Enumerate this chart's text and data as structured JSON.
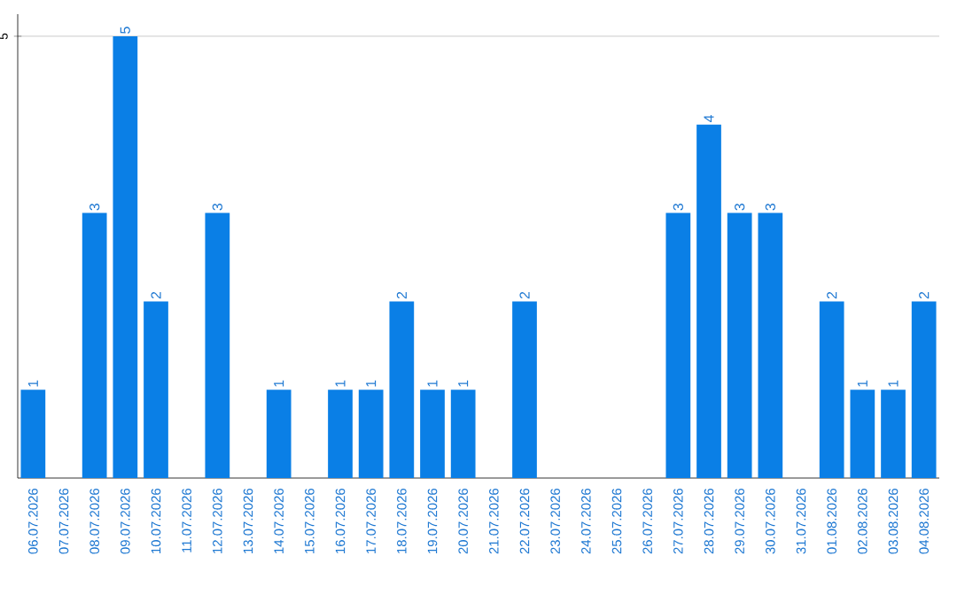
{
  "chart_data": {
    "type": "bar",
    "categories": [
      "06.07.2026",
      "07.07.2026",
      "08.07.2026",
      "09.07.2026",
      "10.07.2026",
      "11.07.2026",
      "12.07.2026",
      "13.07.2026",
      "14.07.2026",
      "15.07.2026",
      "16.07.2026",
      "17.07.2026",
      "18.07.2026",
      "19.07.2026",
      "20.07.2026",
      "21.07.2026",
      "22.07.2026",
      "23.07.2026",
      "24.07.2026",
      "25.07.2026",
      "26.07.2026",
      "27.07.2026",
      "28.07.2026",
      "29.07.2026",
      "30.07.2026",
      "31.07.2026",
      "01.08.2026",
      "02.08.2026",
      "03.08.2026",
      "04.08.2026"
    ],
    "values": [
      1,
      null,
      3,
      5,
      2,
      null,
      3,
      null,
      1,
      null,
      1,
      1,
      2,
      1,
      1,
      null,
      2,
      null,
      null,
      null,
      null,
      3,
      4,
      3,
      3,
      null,
      2,
      1,
      1,
      2
    ],
    "color": "#0a7fe6",
    "ylim": [
      0,
      5.25
    ],
    "yticks": [
      5
    ],
    "grid": "y",
    "data_labels": true
  }
}
